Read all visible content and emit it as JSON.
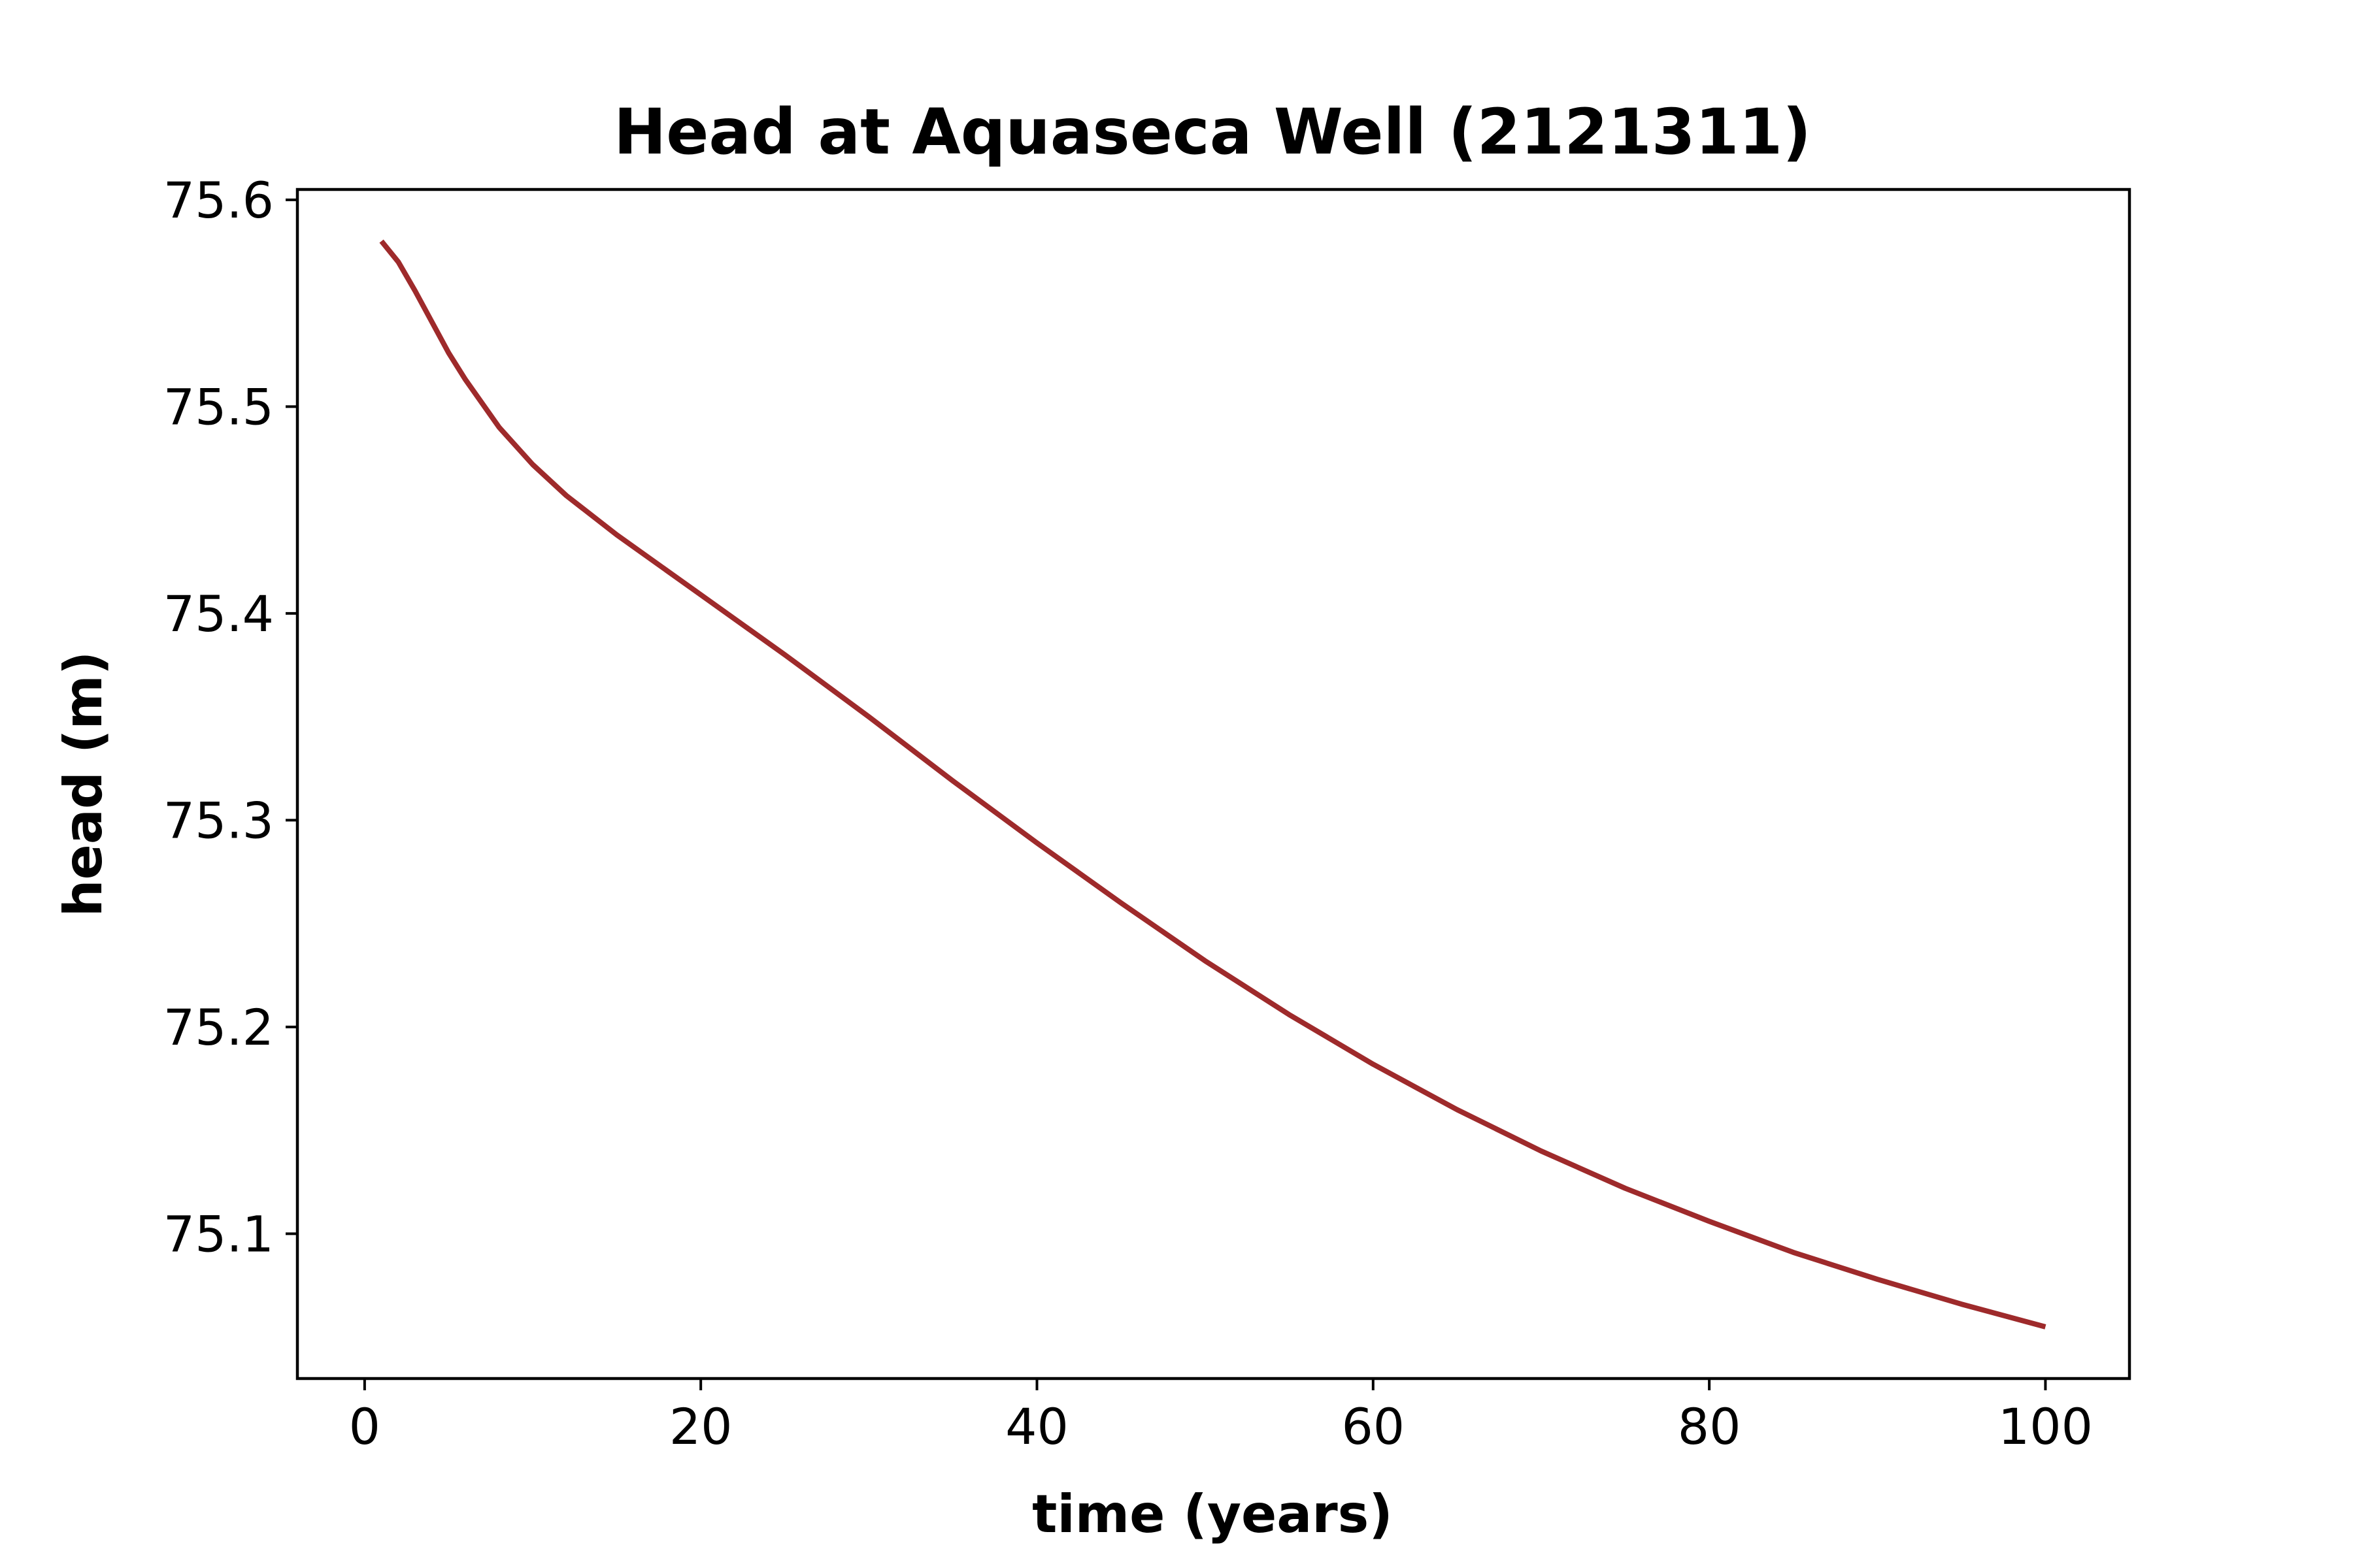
{
  "chart_data": {
    "type": "line",
    "title": "Head at Aquaseca Well (2121311)",
    "xlabel": "time (years)",
    "ylabel": "head (m)",
    "xlim": [
      -4,
      105
    ],
    "ylim": [
      75.03,
      75.605
    ],
    "xticks": [
      0,
      20,
      40,
      60,
      80,
      100
    ],
    "xtick_labels": [
      "0",
      "20",
      "40",
      "60",
      "80",
      "100"
    ],
    "yticks": [
      75.1,
      75.2,
      75.3,
      75.4,
      75.5,
      75.6
    ],
    "ytick_labels": [
      "75.1",
      "75.2",
      "75.3",
      "75.4",
      "75.5",
      "75.6"
    ],
    "grid": false,
    "series": [
      {
        "color": "#9e2a2b",
        "x": [
          1,
          2,
          3,
          4,
          5,
          6,
          8,
          10,
          12,
          15,
          20,
          25,
          30,
          35,
          40,
          45,
          50,
          55,
          60,
          65,
          70,
          75,
          80,
          85,
          90,
          95,
          100
        ],
        "y": [
          75.58,
          75.57,
          75.556,
          75.541,
          75.526,
          75.513,
          75.49,
          75.472,
          75.457,
          75.438,
          75.409,
          75.38,
          75.35,
          75.319,
          75.289,
          75.26,
          75.232,
          75.206,
          75.182,
          75.16,
          75.14,
          75.122,
          75.106,
          75.091,
          75.078,
          75.066,
          75.055
        ]
      }
    ]
  }
}
